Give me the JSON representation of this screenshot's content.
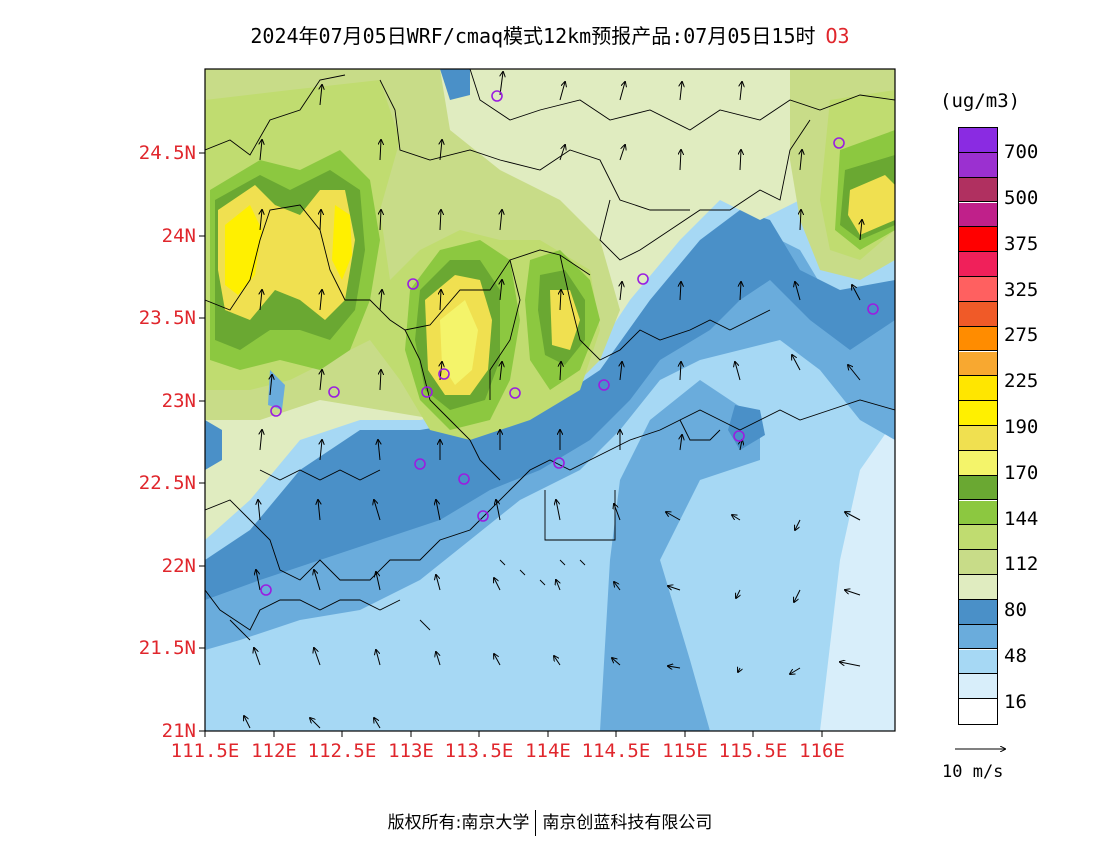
{
  "header": {
    "title": "2024年07月05日WRF/cmaq模式12km预报产品:07月05日15时",
    "species": "O3"
  },
  "map": {
    "lat_labels": [
      "24.5N",
      "24N",
      "23.5N",
      "23N",
      "22.5N",
      "22N",
      "21.5N",
      "21N"
    ],
    "lon_labels": [
      "111.5E",
      "112E",
      "112.5E",
      "113E",
      "113.5E",
      "114E",
      "114.5E",
      "115E",
      "115.5E",
      "116E"
    ]
  },
  "legend": {
    "unit": "(ug/m3)",
    "labels": [
      "700",
      "500",
      "375",
      "325",
      "275",
      "225",
      "190",
      "170",
      "144",
      "112",
      "80",
      "48",
      "16"
    ],
    "colors": [
      "#8a2be2",
      "#9b30d0",
      "#b03060",
      "#c0208a",
      "#ff0000",
      "#f0205a",
      "#ff6060",
      "#f05a28",
      "#ff8c00",
      "#f8a830",
      "#ffe600",
      "#fff000",
      "#f0e050",
      "#f4f46a",
      "#6aa832",
      "#8cc840",
      "#c0dc70",
      "#c8dc88",
      "#e0ecc0",
      "#4a90c8",
      "#6aacdc",
      "#a6d8f4",
      "#d8eefa",
      "#ffffff"
    ],
    "vector_ref": "10 m/s"
  },
  "footer": {
    "left": "版权所有:南京大学",
    "right": "南京创蓝科技有限公司"
  }
}
